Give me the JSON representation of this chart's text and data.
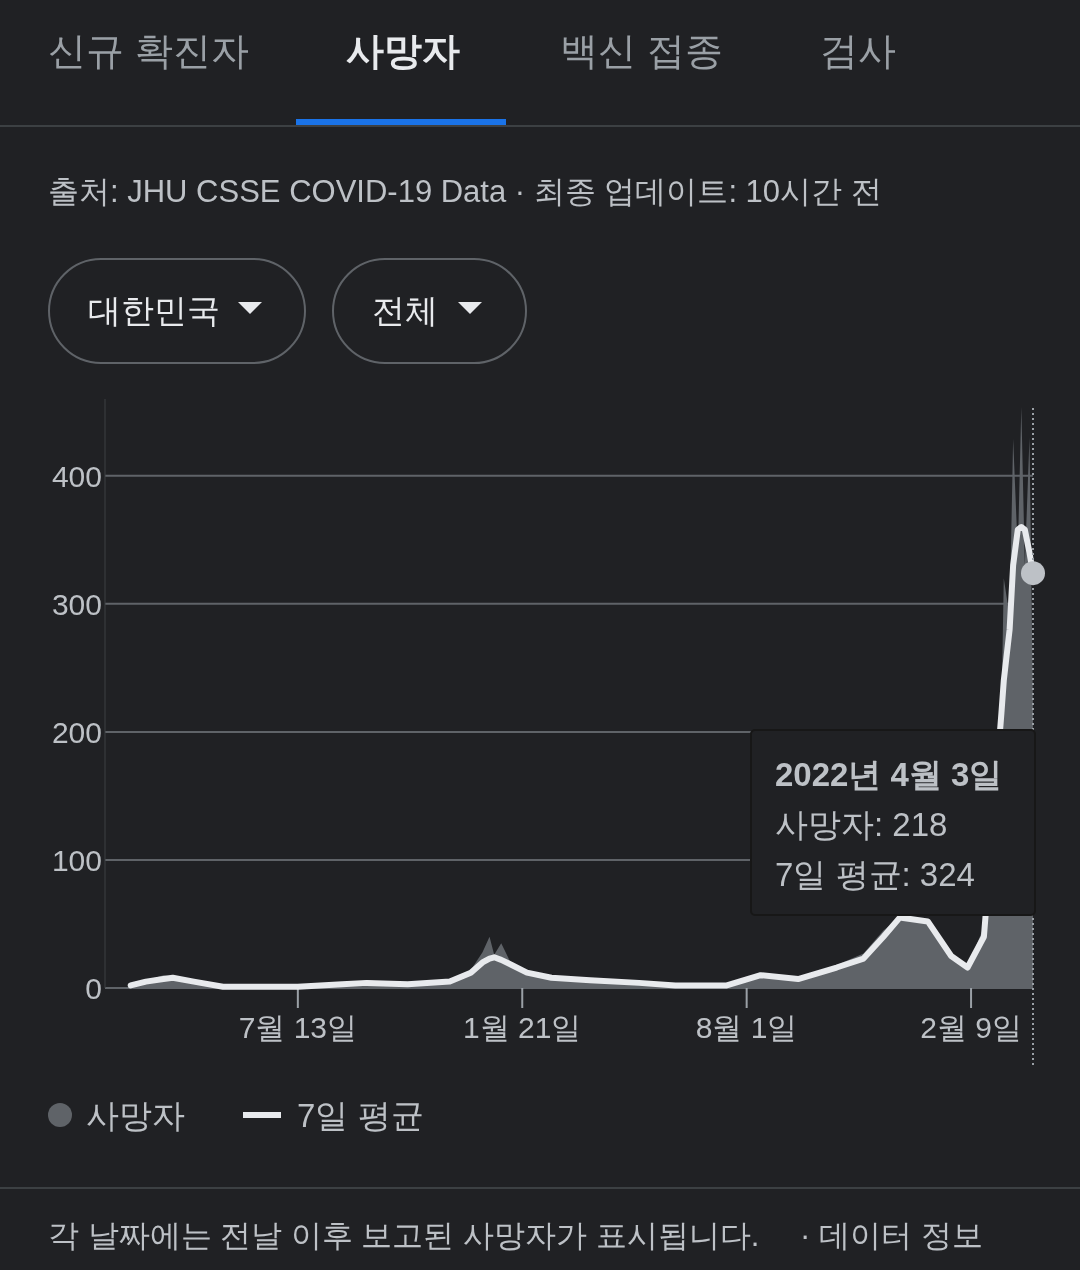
{
  "chart_data": {
    "type": "area",
    "x": [
      "2020-02-21",
      "2020-03-05",
      "2020-03-20",
      "2020-03-28",
      "2020-04-15",
      "2020-05-10",
      "2020-06-15",
      "2020-07-13",
      "2020-08-20",
      "2020-09-10",
      "2020-10-15",
      "2020-11-20",
      "2020-12-08",
      "2020-12-18",
      "2020-12-24",
      "2020-12-28",
      "2021-01-03",
      "2021-01-12",
      "2021-01-25",
      "2021-02-15",
      "2021-03-20",
      "2021-05-01",
      "2021-06-01",
      "2021-07-15",
      "2021-08-13",
      "2021-09-14",
      "2021-10-17",
      "2021-11-09",
      "2021-11-26",
      "2021-12-10",
      "2022-01-03",
      "2022-01-23",
      "2022-02-06",
      "2022-02-20",
      "2022-03-07",
      "2022-03-09",
      "2022-03-14",
      "2022-03-17",
      "2022-03-21",
      "2022-03-24",
      "2022-03-27",
      "2022-03-31",
      "2022-04-03"
    ],
    "series": [
      {
        "name": "사망자",
        "color": "#5f6368",
        "values": [
          2,
          6,
          10,
          9,
          4,
          2,
          1,
          1,
          3,
          6,
          3,
          5,
          14,
          28,
          40,
          26,
          35,
          18,
          12,
          9,
          5,
          4,
          2,
          2,
          10,
          7,
          18,
          27,
          45,
          55,
          52,
          25,
          16,
          48,
          215,
          320,
          290,
          429,
          340,
          454,
          330,
          430,
          218
        ]
      },
      {
        "name": "7일 평균",
        "type": "line",
        "color": "#e8eaed",
        "values": [
          2,
          5,
          7,
          8,
          5,
          1,
          1,
          1,
          3,
          4,
          3,
          5,
          12,
          20,
          23,
          24,
          22,
          18,
          12,
          8,
          6,
          4,
          2,
          2,
          10,
          7,
          16,
          23,
          40,
          55,
          52,
          25,
          16,
          40,
          215,
          240,
          280,
          330,
          358,
          360,
          358,
          340,
          324
        ]
      }
    ],
    "xlim": [
      "2020-01-30",
      "2022-04-03"
    ],
    "xticks": [
      {
        "value": "2020-07-13",
        "label": "7월 13일"
      },
      {
        "value": "2021-01-21",
        "label": "1월 21일"
      },
      {
        "value": "2021-08-01",
        "label": "8월 1일"
      },
      {
        "value": "2022-02-09",
        "label": "2월 9일"
      }
    ],
    "ylim": [
      0,
      460
    ],
    "yticks": [
      0,
      100,
      200,
      300,
      400
    ],
    "grid": "y",
    "legend": "bottom left",
    "ref_lines": [
      {
        "axis": "x",
        "value": "2022-04-03",
        "label": null,
        "color": "#9aa0a6",
        "line_style": "dotted"
      }
    ],
    "annotations": [
      "신규 확진자",
      "사망자",
      "백신 접종",
      "검사",
      "출처: JHU CSSE COVID-19 Data · 최종 업데이트: 10시간 전",
      "대한민국",
      "전체",
      "각 날짜에는 전날 이후 보고된 사망자가 표시됩니다.",
      "· 데이터 정보",
      "2022년 4월 3일\n사망자: 218\n7일 평균: 324"
    ]
  }
}
